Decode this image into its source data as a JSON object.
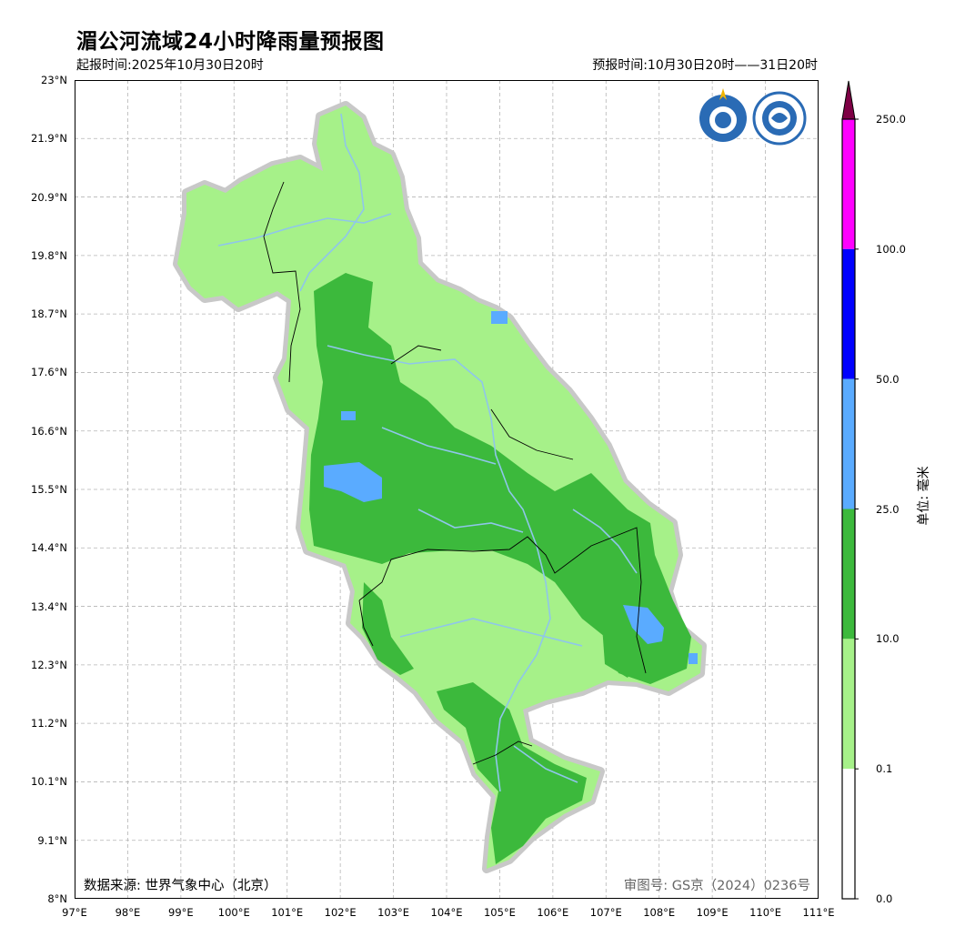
{
  "title": "湄公河流域24小时降雨量预报图",
  "issue_time": "起报时间:2025年10月30日20时",
  "valid_time": "预报时间:10月30日20时——31日20时",
  "data_source": "数据来源: 世界气象中心（北京）",
  "approval_no": "审图号: GS京（2024）0236号",
  "map": {
    "lat_ticks": [
      "23°N",
      "21.9°N",
      "20.9°N",
      "19.8°N",
      "18.7°N",
      "17.6°N",
      "16.6°N",
      "15.5°N",
      "14.4°N",
      "13.4°N",
      "12.3°N",
      "11.2°N",
      "10.1°N",
      "9.1°N",
      "8°N"
    ],
    "lon_ticks": [
      "97°E",
      "98°E",
      "99°E",
      "100°E",
      "101°E",
      "102°E",
      "103°E",
      "104°E",
      "105°E",
      "106°E",
      "107°E",
      "108°E",
      "109°E",
      "110°E",
      "111°E"
    ],
    "gridlines": true,
    "extent": {
      "lon": [
        97,
        111
      ],
      "lat": [
        8,
        23
      ]
    },
    "logos": [
      "wmo-logo",
      "cma-logo"
    ]
  },
  "legend": {
    "unit": "单位: 毫米",
    "levels": [
      "250.0",
      "100.0",
      "50.0",
      "25.0",
      "10.0",
      "0.1",
      "0.0"
    ],
    "colors": [
      "#7e0045",
      "#ff00ff",
      "#0000ff",
      "#5aabff",
      "#3cb93c",
      "#a6f189",
      "#ffffff"
    ]
  }
}
